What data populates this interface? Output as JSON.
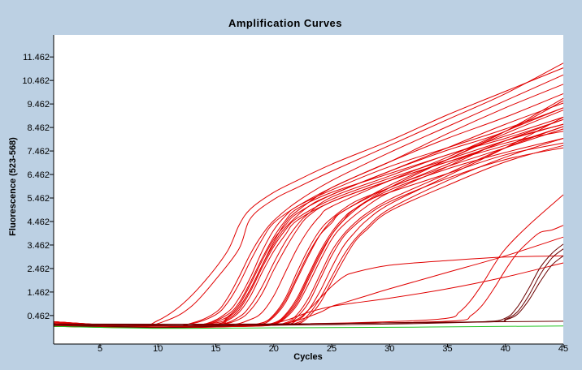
{
  "chart_data": {
    "type": "line",
    "title": "Amplification Curves",
    "xlabel": "Cycles",
    "ylabel": "Fluorescence (523-568)",
    "xlim": [
      1,
      45
    ],
    "ylim": [
      -0.75,
      12.4
    ],
    "xticks": [
      5,
      10,
      15,
      20,
      25,
      30,
      35,
      40,
      45
    ],
    "yticks": [
      0.462,
      1.462,
      2.462,
      3.462,
      4.462,
      5.462,
      6.462,
      7.462,
      8.462,
      9.462,
      10.462,
      11.462
    ],
    "ytick_labels": [
      "0.462",
      "1.462",
      "2.462",
      "3.462",
      "4.462",
      "5.462",
      "6.462",
      "7.462",
      "8.462",
      "9.462",
      "10.462",
      "11.462"
    ],
    "grid": false,
    "legend": "none",
    "colors": {
      "positive": "#e00000",
      "late": "#6b0000",
      "negative_control": "#22c322",
      "background": "#bcd0e3",
      "plot_area": "#ffffff"
    },
    "series": [
      {
        "color": "#e00000",
        "x": [
          1,
          8,
          10,
          12,
          14,
          16,
          17,
          18,
          20,
          22,
          25,
          30,
          35,
          40,
          45
        ],
        "values": [
          0.1,
          -0.02,
          0.25,
          0.9,
          1.9,
          3.2,
          4.3,
          5.0,
          5.7,
          6.2,
          6.9,
          7.9,
          9.0,
          10.0,
          11.0
        ]
      },
      {
        "color": "#e00000",
        "x": [
          1,
          8,
          11,
          13,
          15,
          17,
          18,
          20,
          22,
          25,
          30,
          35,
          40,
          45
        ],
        "values": [
          0.2,
          -0.02,
          0.3,
          0.9,
          2.0,
          3.3,
          4.6,
          5.4,
          5.9,
          6.6,
          7.7,
          8.8,
          9.9,
          11.2
        ]
      },
      {
        "color": "#e00000",
        "x": [
          1,
          10,
          13,
          15,
          16,
          17,
          18,
          19,
          20,
          22,
          25,
          30,
          35,
          40,
          45
        ],
        "values": [
          0.15,
          -0.05,
          0.15,
          0.6,
          1.2,
          2.1,
          3.1,
          3.9,
          4.5,
          5.3,
          6.2,
          7.4,
          8.5,
          9.6,
          10.7
        ]
      },
      {
        "color": "#e00000",
        "x": [
          1,
          10,
          13,
          15,
          16,
          17,
          18,
          19,
          20,
          22,
          25,
          30,
          35,
          40,
          45
        ],
        "values": [
          0.1,
          -0.05,
          0.12,
          0.5,
          1.0,
          1.8,
          2.8,
          3.7,
          4.4,
          5.1,
          5.9,
          7.0,
          8.0,
          8.9,
          9.9
        ]
      },
      {
        "color": "#e00000",
        "x": [
          1,
          10,
          14,
          16,
          17,
          18,
          19,
          20,
          21,
          22,
          25,
          30,
          35,
          40,
          45
        ],
        "values": [
          0.2,
          -0.05,
          0.1,
          0.6,
          1.2,
          2.1,
          3.2,
          4.1,
          4.7,
          5.1,
          5.8,
          6.8,
          7.6,
          8.4,
          9.3
        ]
      },
      {
        "color": "#e00000",
        "x": [
          1,
          10,
          14,
          16,
          17,
          18,
          19,
          20,
          21,
          22,
          25,
          30,
          35,
          40,
          45
        ],
        "values": [
          0.05,
          -0.05,
          0.1,
          0.5,
          1.0,
          1.9,
          2.9,
          3.8,
          4.5,
          5.0,
          5.7,
          6.5,
          7.3,
          8.1,
          8.9
        ]
      },
      {
        "color": "#e00000",
        "x": [
          1,
          10,
          14,
          16,
          17,
          18,
          19,
          20,
          21,
          23,
          25,
          30,
          35,
          40,
          45
        ],
        "values": [
          0.1,
          -0.05,
          0.08,
          0.4,
          0.8,
          1.6,
          2.6,
          3.5,
          4.2,
          5.1,
          5.6,
          6.6,
          7.5,
          8.3,
          9.6
        ]
      },
      {
        "color": "#e00000",
        "x": [
          1,
          10,
          15,
          16,
          17,
          18,
          19,
          20,
          21,
          22,
          25,
          30,
          35,
          40,
          45
        ],
        "values": [
          0.0,
          -0.05,
          0.15,
          0.4,
          0.9,
          1.8,
          2.8,
          3.7,
          4.3,
          4.8,
          5.6,
          6.6,
          7.6,
          8.6,
          9.5
        ]
      },
      {
        "color": "#e00000",
        "x": [
          1,
          10,
          15,
          16,
          17,
          18,
          19,
          20,
          21,
          22,
          25,
          30,
          35,
          40,
          45
        ],
        "values": [
          0.15,
          -0.05,
          0.1,
          0.3,
          0.7,
          1.5,
          2.5,
          3.4,
          4.1,
          4.6,
          5.4,
          6.3,
          7.1,
          7.9,
          8.6
        ]
      },
      {
        "color": "#e00000",
        "x": [
          1,
          10,
          15,
          16,
          17,
          18,
          19,
          20,
          21,
          22,
          25,
          30,
          35,
          40,
          45
        ],
        "values": [
          0.05,
          -0.05,
          0.1,
          0.35,
          0.8,
          1.6,
          2.6,
          3.6,
          4.4,
          4.9,
          5.9,
          7.0,
          8.2,
          9.3,
          10.3
        ]
      },
      {
        "color": "#e00000",
        "x": [
          1,
          10,
          15,
          16,
          17,
          18,
          19,
          20,
          21,
          22,
          25,
          30,
          35,
          40,
          45
        ],
        "values": [
          0.1,
          -0.05,
          0.05,
          0.25,
          0.6,
          1.3,
          2.3,
          3.2,
          3.9,
          4.5,
          5.3,
          6.2,
          7.0,
          7.8,
          8.3
        ]
      },
      {
        "color": "#e00000",
        "x": [
          1,
          10,
          15,
          17,
          18,
          19,
          20,
          21,
          22,
          23,
          25,
          30,
          35,
          40,
          45
        ],
        "values": [
          0.2,
          -0.05,
          0.05,
          0.4,
          0.9,
          1.7,
          2.7,
          3.6,
          4.3,
          4.8,
          5.5,
          6.4,
          7.3,
          8.0,
          8.8
        ]
      },
      {
        "color": "#e00000",
        "x": [
          1,
          10,
          15,
          17,
          18,
          19,
          20,
          21,
          22,
          23,
          25,
          30,
          35,
          40,
          45
        ],
        "values": [
          0.1,
          -0.05,
          0.05,
          0.3,
          0.7,
          1.4,
          2.4,
          3.3,
          4.1,
          4.7,
          5.3,
          6.2,
          7.0,
          7.7,
          8.5
        ]
      },
      {
        "color": "#e00000",
        "x": [
          1,
          10,
          16,
          18,
          19,
          20,
          21,
          22,
          23,
          24,
          25,
          30,
          35,
          40,
          45
        ],
        "values": [
          0.05,
          -0.05,
          0.05,
          0.3,
          0.6,
          1.3,
          2.3,
          3.3,
          4.1,
          4.7,
          5.1,
          6.2,
          7.2,
          8.3,
          9.3
        ]
      },
      {
        "color": "#e00000",
        "x": [
          1,
          10,
          17,
          19,
          20,
          21,
          22,
          23,
          24,
          25,
          26,
          30,
          35,
          40,
          45
        ],
        "values": [
          0.15,
          -0.05,
          0.05,
          0.1,
          0.4,
          1.0,
          2.0,
          3.0,
          3.9,
          4.5,
          4.9,
          6.0,
          7.1,
          8.2,
          9.2
        ]
      },
      {
        "color": "#e00000",
        "x": [
          1,
          10,
          17,
          19,
          20,
          21,
          22,
          23,
          24,
          25,
          26,
          30,
          35,
          40,
          45
        ],
        "values": [
          0.1,
          -0.05,
          0.05,
          0.15,
          0.45,
          1.1,
          2.1,
          3.1,
          3.9,
          4.4,
          4.9,
          5.9,
          6.8,
          7.6,
          8.4
        ]
      },
      {
        "color": "#e00000",
        "x": [
          1,
          10,
          17,
          19,
          20,
          21,
          22,
          23,
          24,
          25,
          27,
          30,
          35,
          40,
          45
        ],
        "values": [
          0.0,
          -0.05,
          0.05,
          0.15,
          0.5,
          1.2,
          2.3,
          3.3,
          4.1,
          4.6,
          5.3,
          5.9,
          6.9,
          7.9,
          8.8
        ]
      },
      {
        "color": "#e00000",
        "x": [
          1,
          10,
          18,
          20,
          21,
          22,
          23,
          24,
          25,
          26,
          27,
          30,
          35,
          40,
          45
        ],
        "values": [
          0.2,
          -0.05,
          0.05,
          0.15,
          0.5,
          1.2,
          2.2,
          3.2,
          4.0,
          4.6,
          5.0,
          5.8,
          6.7,
          7.4,
          8.0
        ]
      },
      {
        "color": "#e00000",
        "x": [
          1,
          10,
          18,
          20,
          21,
          22,
          23,
          24,
          25,
          26,
          27,
          30,
          35,
          40,
          45
        ],
        "values": [
          0.1,
          -0.05,
          0.05,
          0.1,
          0.4,
          1.0,
          2.0,
          3.0,
          3.9,
          4.5,
          5.0,
          5.9,
          7.1,
          8.3,
          9.7
        ]
      },
      {
        "color": "#e00000",
        "x": [
          1,
          10,
          18,
          20,
          21,
          22,
          23,
          24,
          25,
          26,
          28,
          30,
          35,
          40,
          45
        ],
        "values": [
          0.05,
          -0.05,
          0.05,
          0.12,
          0.45,
          1.1,
          2.1,
          3.1,
          3.9,
          4.5,
          5.3,
          5.7,
          6.5,
          7.3,
          7.8
        ]
      },
      {
        "color": "#e00000",
        "x": [
          1,
          10,
          18,
          20,
          21,
          22,
          23,
          24,
          25,
          26,
          28,
          30,
          35,
          40,
          45
        ],
        "values": [
          0.15,
          -0.05,
          0.05,
          0.1,
          0.35,
          0.9,
          1.8,
          2.8,
          3.7,
          4.3,
          5.1,
          5.7,
          6.8,
          7.9,
          8.6
        ]
      },
      {
        "color": "#e00000",
        "x": [
          1,
          10,
          19,
          21,
          22,
          23,
          24,
          25,
          26,
          27,
          28,
          30,
          35,
          40,
          45
        ],
        "values": [
          0.1,
          -0.05,
          0.05,
          0.15,
          0.5,
          1.2,
          2.2,
          3.2,
          3.9,
          4.4,
          4.8,
          5.4,
          6.5,
          7.6,
          8.5
        ]
      },
      {
        "color": "#e00000",
        "x": [
          1,
          10,
          19,
          21,
          22,
          23,
          24,
          25,
          26,
          27,
          28,
          30,
          35,
          40,
          45
        ],
        "values": [
          0.0,
          -0.05,
          0.05,
          0.1,
          0.4,
          1.0,
          2.0,
          3.0,
          3.8,
          4.3,
          4.7,
          5.3,
          6.3,
          7.1,
          7.6
        ]
      },
      {
        "color": "#e00000",
        "x": [
          1,
          10,
          20,
          22,
          23,
          24,
          25,
          26,
          27,
          28,
          30,
          35,
          40,
          45
        ],
        "values": [
          0.1,
          -0.05,
          0.05,
          0.25,
          0.7,
          1.5,
          2.5,
          3.4,
          4.0,
          4.5,
          5.2,
          6.4,
          7.6,
          8.9
        ]
      },
      {
        "color": "#e00000",
        "x": [
          1,
          10,
          20,
          22,
          23,
          24,
          25,
          26,
          27,
          28,
          30,
          35,
          40,
          45
        ],
        "values": [
          0.2,
          -0.05,
          0.05,
          0.15,
          0.5,
          1.2,
          2.1,
          3.0,
          3.7,
          4.2,
          5.0,
          6.2,
          7.2,
          8.0
        ]
      },
      {
        "color": "#e00000",
        "x": [
          1,
          10,
          20,
          22,
          23,
          24,
          25,
          26,
          27,
          28,
          30,
          35,
          40,
          45
        ],
        "values": [
          0.05,
          -0.05,
          0.05,
          0.1,
          0.4,
          1.0,
          1.9,
          2.8,
          3.6,
          4.1,
          4.9,
          6.0,
          7.0,
          7.7
        ]
      },
      {
        "color": "#e00000",
        "x": [
          1,
          15,
          19,
          21,
          23,
          25,
          27,
          30,
          35,
          40,
          45
        ],
        "values": [
          0.1,
          0.0,
          0.05,
          0.25,
          0.6,
          0.85,
          1.0,
          1.2,
          1.6,
          2.1,
          2.7
        ]
      },
      {
        "color": "#e00000",
        "x": [
          1,
          15,
          20,
          22,
          24,
          25,
          26,
          28,
          30,
          35,
          40,
          45
        ],
        "values": [
          0.1,
          0.0,
          0.05,
          0.25,
          0.6,
          0.85,
          1.0,
          1.3,
          1.6,
          2.3,
          3.0,
          3.8
        ]
      },
      {
        "color": "#e00000",
        "x": [
          1,
          15,
          20,
          22,
          23,
          24,
          25,
          26,
          27,
          30,
          35,
          40,
          45
        ],
        "values": [
          0.0,
          0.0,
          0.05,
          0.3,
          0.7,
          1.2,
          1.7,
          2.1,
          2.3,
          2.6,
          2.8,
          2.95,
          3.0
        ]
      },
      {
        "color": "#e00000",
        "x": [
          1,
          20,
          30,
          35,
          36,
          37,
          38,
          39,
          40,
          42,
          45
        ],
        "values": [
          0.1,
          0.1,
          0.2,
          0.35,
          0.6,
          1.1,
          1.8,
          2.6,
          3.3,
          4.3,
          5.6
        ]
      },
      {
        "color": "#e00000",
        "x": [
          1,
          20,
          30,
          36,
          37,
          38,
          39,
          40,
          41,
          42,
          43,
          44,
          45
        ],
        "values": [
          0.05,
          0.1,
          0.15,
          0.25,
          0.45,
          0.9,
          1.6,
          2.4,
          3.1,
          3.6,
          4.0,
          4.1,
          4.3
        ]
      },
      {
        "color": "#6b0000",
        "x": [
          1,
          20,
          30,
          38,
          40,
          41,
          42,
          43,
          44,
          45
        ],
        "values": [
          0.05,
          0.1,
          0.15,
          0.2,
          0.35,
          0.8,
          1.6,
          2.5,
          3.1,
          3.5
        ]
      },
      {
        "color": "#6b0000",
        "x": [
          1,
          20,
          30,
          39,
          40,
          41,
          42,
          43,
          44,
          45
        ],
        "values": [
          0.1,
          0.1,
          0.15,
          0.2,
          0.3,
          0.6,
          1.3,
          2.2,
          2.9,
          3.3
        ]
      },
      {
        "color": "#6b0000",
        "x": [
          1,
          20,
          30,
          39,
          40,
          41,
          42,
          43,
          44,
          45
        ],
        "values": [
          0.0,
          0.05,
          0.1,
          0.2,
          0.28,
          0.5,
          1.1,
          1.9,
          2.6,
          3.0
        ]
      },
      {
        "color": "#6b0000",
        "x": [
          1,
          10,
          20,
          30,
          35,
          40,
          45
        ],
        "values": [
          0.1,
          -0.05,
          0.08,
          0.15,
          0.18,
          0.2,
          0.22
        ]
      },
      {
        "color": "#22c322",
        "x": [
          1,
          10,
          20,
          30,
          40,
          45
        ],
        "values": [
          0.0,
          -0.08,
          -0.06,
          -0.04,
          0.0,
          0.02
        ]
      }
    ]
  }
}
